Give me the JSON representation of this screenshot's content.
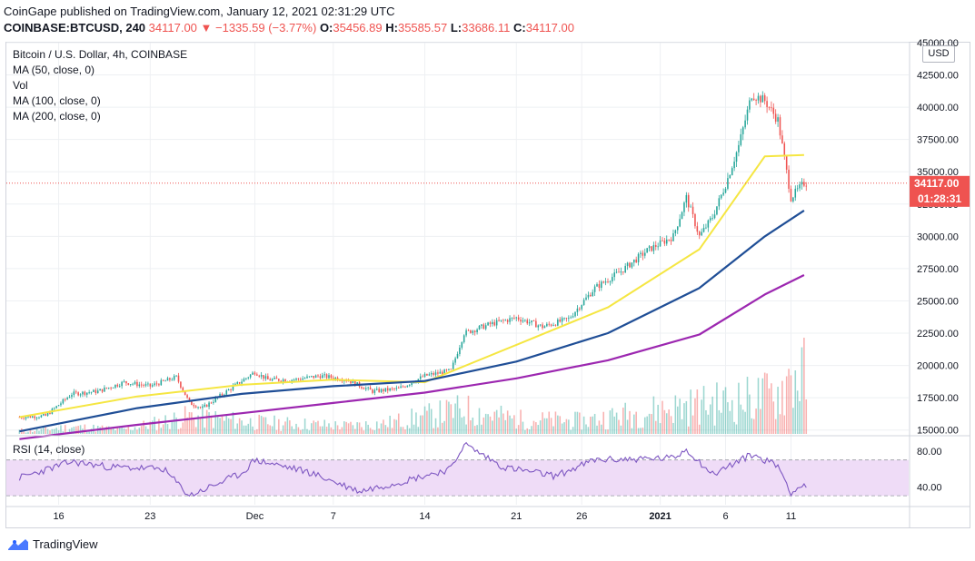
{
  "header": {
    "publisher": "CoinGape published on TradingView.com, January 12, 2021 02:31:29 UTC",
    "symbol": "COINBASE:BTCUSD, 240",
    "change": "34117.00 ▼ −1335.59 (−3.77%)",
    "o_label": "O:",
    "o_value": "35456.89",
    "h_label": "H:",
    "h_value": "35585.57",
    "l_label": "L:",
    "l_value": "33686.11",
    "c_label": "C:",
    "c_value": "34117.00"
  },
  "legend": {
    "title": "Bitcoin / U.S. Dollar, 4h, COINBASE",
    "ma50": "MA (50, close, 0)",
    "vol": "Vol",
    "ma100": "MA (100, close, 0)",
    "ma200": "MA (200, close, 0)",
    "rsi": "RSI (14, close)"
  },
  "axis": {
    "currency": "USD",
    "last_price": "34117.00",
    "countdown": "01:28:31"
  },
  "footer": {
    "brand": "TradingView"
  },
  "colors": {
    "up": "#26a69a",
    "down": "#ef5350",
    "ma50": "#f5e642",
    "ma100": "#1f4e96",
    "ma200": "#9c27b0",
    "rsi": "#7e57c2",
    "rsi_band": "#efdcf7"
  },
  "chart_data": [
    {
      "type": "candlestick",
      "title": "Bitcoin / U.S. Dollar, 4h, COINBASE",
      "x_tick_labels": [
        "16",
        "23",
        "Dec",
        "7",
        "14",
        "21",
        "26",
        "2021",
        "6",
        "11"
      ],
      "y_tick_labels": [
        "15000.00",
        "17500.00",
        "20000.00",
        "22500.00",
        "25000.00",
        "27500.00",
        "30000.00",
        "32500.00",
        "35000.00",
        "37500.00",
        "40000.00",
        "42500.00",
        "45000.00"
      ],
      "ylim": [
        14700,
        45000
      ],
      "price_path": [
        {
          "date": "2020-11-13",
          "close": 16000
        },
        {
          "date": "2020-11-15",
          "close": 16100
        },
        {
          "date": "2020-11-17",
          "close": 17800
        },
        {
          "date": "2020-11-19",
          "close": 18000
        },
        {
          "date": "2020-11-21",
          "close": 18700
        },
        {
          "date": "2020-11-23",
          "close": 18400
        },
        {
          "date": "2020-11-25",
          "close": 19100
        },
        {
          "date": "2020-11-26",
          "close": 17100
        },
        {
          "date": "2020-11-27",
          "close": 16700
        },
        {
          "date": "2020-11-29",
          "close": 18100
        },
        {
          "date": "2020-12-01",
          "close": 19500
        },
        {
          "date": "2020-12-02",
          "close": 18900
        },
        {
          "date": "2020-12-04",
          "close": 18900
        },
        {
          "date": "2020-12-06",
          "close": 19200
        },
        {
          "date": "2020-12-08",
          "close": 18900
        },
        {
          "date": "2020-12-10",
          "close": 18000
        },
        {
          "date": "2020-12-12",
          "close": 18200
        },
        {
          "date": "2020-12-14",
          "close": 19200
        },
        {
          "date": "2020-12-16",
          "close": 19600
        },
        {
          "date": "2020-12-17",
          "close": 22500
        },
        {
          "date": "2020-12-19",
          "close": 23200
        },
        {
          "date": "2020-12-21",
          "close": 23700
        },
        {
          "date": "2020-12-23",
          "close": 23000
        },
        {
          "date": "2020-12-25",
          "close": 23600
        },
        {
          "date": "2020-12-27",
          "close": 26000
        },
        {
          "date": "2020-12-29",
          "close": 27300
        },
        {
          "date": "2020-12-31",
          "close": 28900
        },
        {
          "date": "2021-01-02",
          "close": 30000
        },
        {
          "date": "2021-01-03",
          "close": 33000
        },
        {
          "date": "2021-01-04",
          "close": 30000
        },
        {
          "date": "2021-01-05",
          "close": 31500
        },
        {
          "date": "2021-01-06",
          "close": 34000
        },
        {
          "date": "2021-01-07",
          "close": 37000
        },
        {
          "date": "2021-01-08",
          "close": 41000
        },
        {
          "date": "2021-01-09",
          "close": 40500
        },
        {
          "date": "2021-01-10",
          "close": 39000
        },
        {
          "date": "2021-01-11",
          "close": 33000
        },
        {
          "date": "2021-01-12",
          "close": 34117
        }
      ],
      "series": [
        {
          "name": "MA (50, close, 0)",
          "points": [
            {
              "date": "2020-11-13",
              "value": 16000
            },
            {
              "date": "2020-11-22",
              "value": 17600
            },
            {
              "date": "2020-11-30",
              "value": 18500
            },
            {
              "date": "2020-12-07",
              "value": 18900
            },
            {
              "date": "2020-12-14",
              "value": 18700
            },
            {
              "date": "2020-12-21",
              "value": 21600
            },
            {
              "date": "2020-12-28",
              "value": 24500
            },
            {
              "date": "2021-01-04",
              "value": 29000
            },
            {
              "date": "2021-01-09",
              "value": 36200
            },
            {
              "date": "2021-01-12",
              "value": 36300
            }
          ]
        },
        {
          "name": "MA (100, close, 0)",
          "points": [
            {
              "date": "2020-11-13",
              "value": 14900
            },
            {
              "date": "2020-11-22",
              "value": 16700
            },
            {
              "date": "2020-11-30",
              "value": 17800
            },
            {
              "date": "2020-12-07",
              "value": 18400
            },
            {
              "date": "2020-12-14",
              "value": 18800
            },
            {
              "date": "2020-12-21",
              "value": 20300
            },
            {
              "date": "2020-12-28",
              "value": 22500
            },
            {
              "date": "2021-01-04",
              "value": 26000
            },
            {
              "date": "2021-01-09",
              "value": 30000
            },
            {
              "date": "2021-01-12",
              "value": 32000
            }
          ]
        },
        {
          "name": "MA (200, close, 0)",
          "points": [
            {
              "date": "2020-11-13",
              "value": 14300
            },
            {
              "date": "2020-11-22",
              "value": 15400
            },
            {
              "date": "2020-11-30",
              "value": 16300
            },
            {
              "date": "2020-12-07",
              "value": 17100
            },
            {
              "date": "2020-12-14",
              "value": 17900
            },
            {
              "date": "2020-12-21",
              "value": 19000
            },
            {
              "date": "2020-12-28",
              "value": 20400
            },
            {
              "date": "2021-01-04",
              "value": 22400
            },
            {
              "date": "2021-01-09",
              "value": 25500
            },
            {
              "date": "2021-01-12",
              "value": 27000
            }
          ]
        }
      ],
      "volume_relative": [
        {
          "date": "2020-11-14",
          "value": 0.06
        },
        {
          "date": "2020-11-17",
          "value": 0.12
        },
        {
          "date": "2020-11-21",
          "value": 0.08
        },
        {
          "date": "2020-11-26",
          "value": 0.3
        },
        {
          "date": "2020-12-01",
          "value": 0.2
        },
        {
          "date": "2020-12-08",
          "value": 0.14
        },
        {
          "date": "2020-12-11",
          "value": 0.18
        },
        {
          "date": "2020-12-17",
          "value": 0.42
        },
        {
          "date": "2020-12-21",
          "value": 0.25
        },
        {
          "date": "2020-12-26",
          "value": 0.22
        },
        {
          "date": "2021-01-02",
          "value": 0.45
        },
        {
          "date": "2021-01-04",
          "value": 0.5
        },
        {
          "date": "2021-01-08",
          "value": 0.6
        },
        {
          "date": "2021-01-10",
          "value": 0.7
        },
        {
          "date": "2021-01-11",
          "value": 1.0
        }
      ]
    },
    {
      "type": "line",
      "title": "RSI (14, close)",
      "y_tick_labels": [
        "40.00",
        "80.00"
      ],
      "ylim": [
        20,
        95
      ],
      "band": [
        30,
        70
      ],
      "series": [
        {
          "name": "RSI (14, close)",
          "points": [
            {
              "date": "2020-11-13",
              "value": 50
            },
            {
              "date": "2020-11-17",
              "value": 68
            },
            {
              "date": "2020-11-20",
              "value": 62
            },
            {
              "date": "2020-11-24",
              "value": 60
            },
            {
              "date": "2020-11-26",
              "value": 30
            },
            {
              "date": "2020-11-30",
              "value": 55
            },
            {
              "date": "2020-12-01",
              "value": 70
            },
            {
              "date": "2020-12-05",
              "value": 57
            },
            {
              "date": "2020-12-09",
              "value": 35
            },
            {
              "date": "2020-12-12",
              "value": 45
            },
            {
              "date": "2020-12-16",
              "value": 60
            },
            {
              "date": "2020-12-17",
              "value": 88
            },
            {
              "date": "2020-12-20",
              "value": 62
            },
            {
              "date": "2020-12-24",
              "value": 52
            },
            {
              "date": "2020-12-27",
              "value": 70
            },
            {
              "date": "2021-01-02",
              "value": 72
            },
            {
              "date": "2021-01-03",
              "value": 82
            },
            {
              "date": "2021-01-05",
              "value": 54
            },
            {
              "date": "2021-01-08",
              "value": 76
            },
            {
              "date": "2021-01-10",
              "value": 64
            },
            {
              "date": "2021-01-11",
              "value": 34
            },
            {
              "date": "2021-01-12",
              "value": 42
            }
          ]
        }
      ]
    }
  ]
}
